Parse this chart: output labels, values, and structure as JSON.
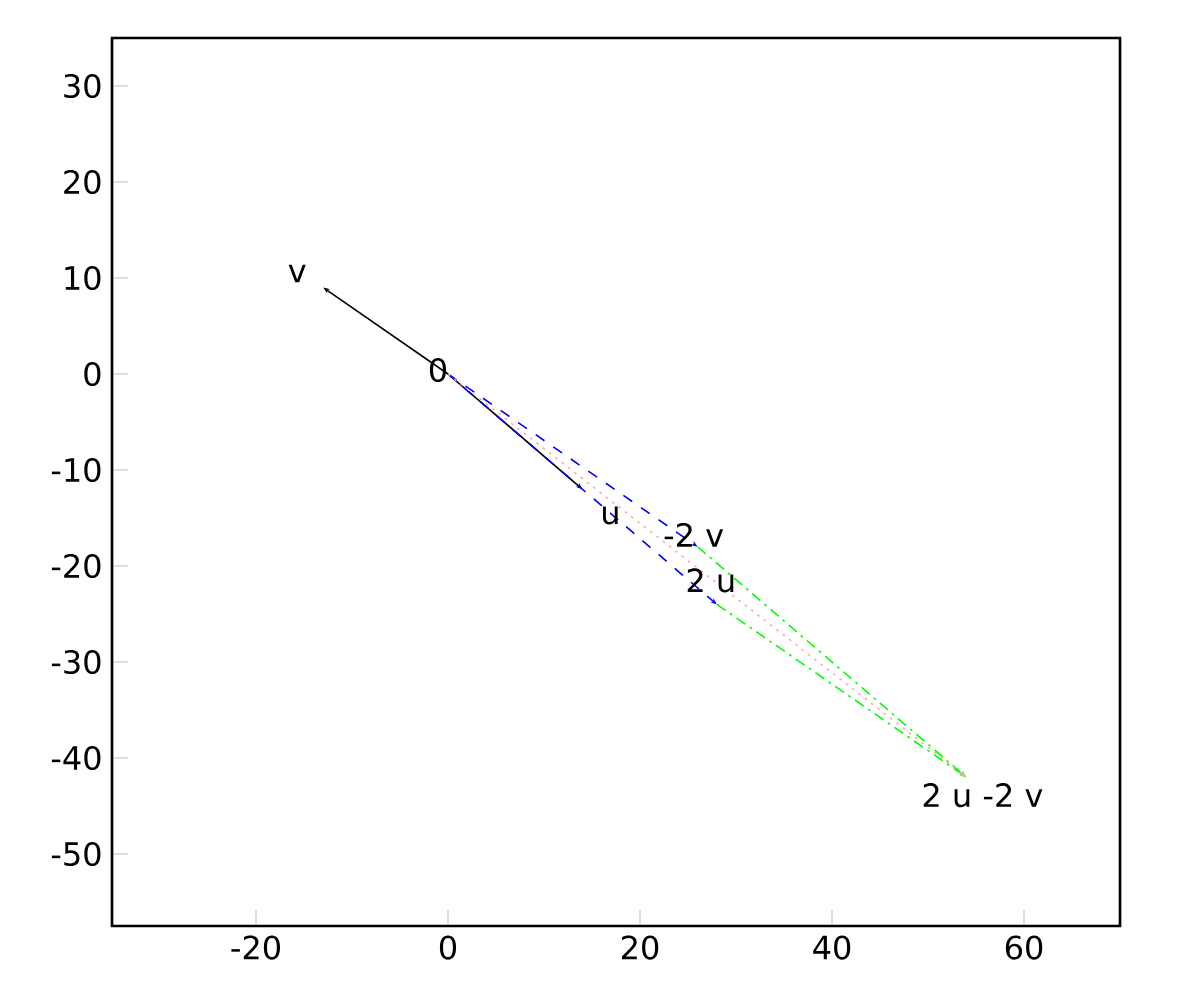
{
  "chart_data": {
    "type": "line",
    "xlim": [
      -35,
      70
    ],
    "ylim": [
      -57.5,
      35
    ],
    "xticks": [
      -20,
      0,
      20,
      40,
      60
    ],
    "yticks": [
      -50,
      -40,
      -30,
      -20,
      -10,
      0,
      10,
      20,
      30
    ],
    "grid": false,
    "series": [
      {
        "color": "#000000",
        "line_style": "solid",
        "x": [
          -13,
          0,
          14
        ],
        "values": [
          9,
          0,
          -12
        ]
      },
      {
        "color": "#0000ff",
        "line_style": "dashed",
        "x": [
          0,
          26
        ],
        "values": [
          0,
          -18
        ]
      },
      {
        "color": "#0000ff",
        "line_style": "dashed",
        "x": [
          0,
          28
        ],
        "values": [
          0,
          -24
        ]
      },
      {
        "color": "#00ff00",
        "line_style": "dashdot",
        "x": [
          26,
          54
        ],
        "values": [
          -18,
          -42
        ]
      },
      {
        "color": "#00ff00",
        "line_style": "dashdot",
        "x": [
          28,
          54
        ],
        "values": [
          -24,
          -42
        ]
      },
      {
        "color": "#ffaaaa",
        "line_style": "dotted",
        "x": [
          0,
          54
        ],
        "values": [
          0,
          -42
        ]
      }
    ],
    "annotations": [
      {
        "text": "v",
        "x": -13,
        "y": 9
      },
      {
        "text": "0",
        "x": 0,
        "y": 0
      },
      {
        "text": "u",
        "x": 14,
        "y": -12
      },
      {
        "text": "-2 v",
        "x": 26,
        "y": -18
      },
      {
        "text": "2 u",
        "x": 28,
        "y": -24
      },
      {
        "text": "2 u -2 v",
        "x": 54,
        "y": -42
      }
    ]
  }
}
